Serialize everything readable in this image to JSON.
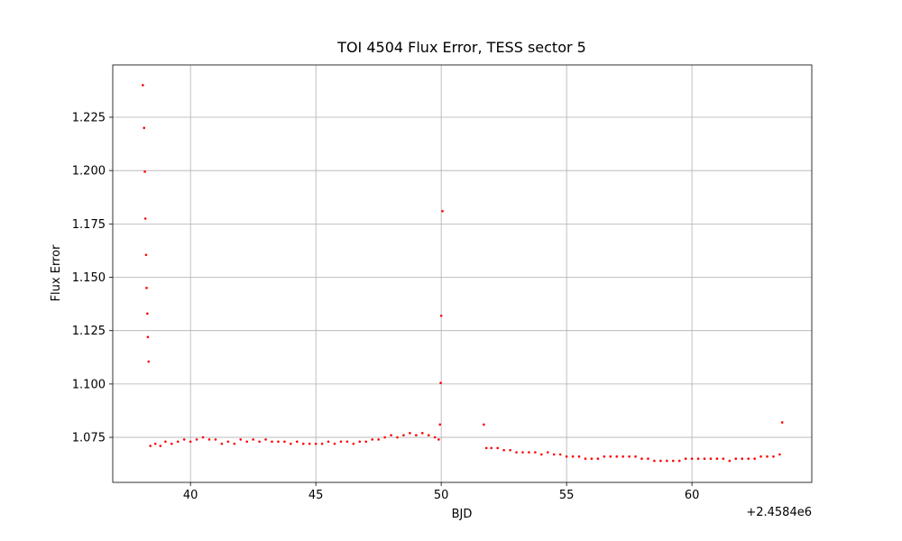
{
  "chart_data": {
    "type": "scatter",
    "title": "TOI 4504 Flux Error, TESS sector 5",
    "x_label": "BJD",
    "y_label": "Flux Error",
    "x_offset_label": "+2.4584e6",
    "color": "#ff0000",
    "grid": true,
    "xlim": [
      36.9,
      64.78
    ],
    "ylim": [
      1.0539,
      1.2495
    ],
    "xticks": [
      40,
      45,
      50,
      55,
      60
    ],
    "yticks": [
      1.075,
      {
        "value": 1.1,
        "label": "1.100"
      },
      1.125,
      {
        "value": 1.15,
        "label": "1.150"
      },
      1.175,
      {
        "value": 1.2,
        "label": "1.200"
      },
      1.225
    ],
    "x": [
      38.1,
      38.15,
      38.18,
      38.2,
      38.23,
      38.25,
      38.28,
      38.3,
      38.33,
      50.05,
      50.0,
      49.98,
      49.95,
      51.7,
      63.6,
      38.4,
      38.6,
      38.8,
      39.0,
      39.25,
      39.5,
      39.75,
      40.0,
      40.25,
      40.5,
      40.75,
      41.0,
      41.25,
      41.5,
      41.75,
      42.0,
      42.25,
      42.5,
      42.75,
      43.0,
      43.25,
      43.5,
      43.75,
      44.0,
      44.25,
      44.5,
      44.75,
      45.0,
      45.25,
      45.5,
      45.75,
      46.0,
      46.25,
      46.5,
      46.75,
      47.0,
      47.25,
      47.5,
      47.75,
      48.0,
      48.25,
      48.5,
      48.75,
      49.0,
      49.25,
      49.5,
      49.75,
      49.9,
      51.8,
      52.0,
      52.25,
      52.5,
      52.75,
      53.0,
      53.25,
      53.5,
      53.75,
      54.0,
      54.25,
      54.5,
      54.75,
      55.0,
      55.25,
      55.5,
      55.75,
      56.0,
      56.25,
      56.5,
      56.75,
      57.0,
      57.25,
      57.5,
      57.75,
      58.0,
      58.25,
      58.5,
      58.75,
      59.0,
      59.25,
      59.5,
      59.75,
      60.0,
      60.25,
      60.5,
      60.75,
      61.0,
      61.25,
      61.5,
      61.75,
      62.0,
      62.25,
      62.5,
      62.75,
      63.0,
      63.25,
      63.5
    ],
    "values": [
      1.24,
      1.22,
      1.1995,
      1.1775,
      1.1605,
      1.145,
      1.133,
      1.122,
      1.1105,
      1.181,
      1.132,
      1.1005,
      1.081,
      1.081,
      1.082,
      1.071,
      1.072,
      1.071,
      1.073,
      1.072,
      1.073,
      1.074,
      1.073,
      1.074,
      1.075,
      1.074,
      1.074,
      1.072,
      1.073,
      1.072,
      1.074,
      1.073,
      1.074,
      1.073,
      1.074,
      1.073,
      1.073,
      1.073,
      1.072,
      1.073,
      1.072,
      1.072,
      1.072,
      1.072,
      1.073,
      1.072,
      1.073,
      1.073,
      1.072,
      1.073,
      1.073,
      1.074,
      1.074,
      1.075,
      1.076,
      1.075,
      1.076,
      1.077,
      1.076,
      1.077,
      1.076,
      1.075,
      1.074,
      1.07,
      1.07,
      1.07,
      1.069,
      1.069,
      1.068,
      1.068,
      1.068,
      1.068,
      1.067,
      1.068,
      1.067,
      1.067,
      1.066,
      1.066,
      1.066,
      1.065,
      1.065,
      1.065,
      1.066,
      1.066,
      1.066,
      1.066,
      1.066,
      1.066,
      1.065,
      1.065,
      1.064,
      1.064,
      1.064,
      1.064,
      1.064,
      1.065,
      1.065,
      1.065,
      1.065,
      1.065,
      1.065,
      1.065,
      1.064,
      1.065,
      1.065,
      1.065,
      1.065,
      1.066,
      1.066,
      1.066,
      1.067
    ]
  }
}
